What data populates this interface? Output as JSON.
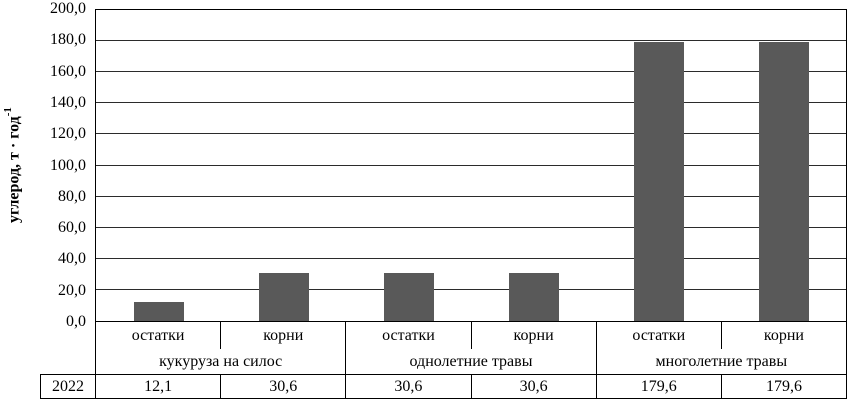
{
  "chart_data": {
    "type": "bar",
    "title": "",
    "ylabel_main": "углерод, т  · год",
    "ylabel_sup": "-1",
    "ylim": [
      0,
      200
    ],
    "ytick_step": 20,
    "yticks": [
      "200,0",
      "180,0",
      "160,0",
      "140,0",
      "120,0",
      "100,0",
      "80,0",
      "60,0",
      "40,0",
      "20,0",
      "0,0"
    ],
    "grid": true,
    "legend_position": "none",
    "bar_color": "#595959",
    "groups": [
      {
        "label": "кукуруза на силос",
        "categories": [
          "остатки",
          "корни"
        ]
      },
      {
        "label": "однолетние травы",
        "categories": [
          "остатки",
          "корни"
        ]
      },
      {
        "label": "многолетние травы",
        "categories": [
          "остатки",
          "корни"
        ]
      }
    ],
    "series": [
      {
        "name": "2022",
        "values": [
          12.1,
          30.6,
          30.6,
          30.6,
          179.6,
          179.6
        ]
      }
    ],
    "table_cells": [
      "12,1",
      "30,6",
      "30,6",
      "30,6",
      "179,6",
      "179,6"
    ]
  }
}
